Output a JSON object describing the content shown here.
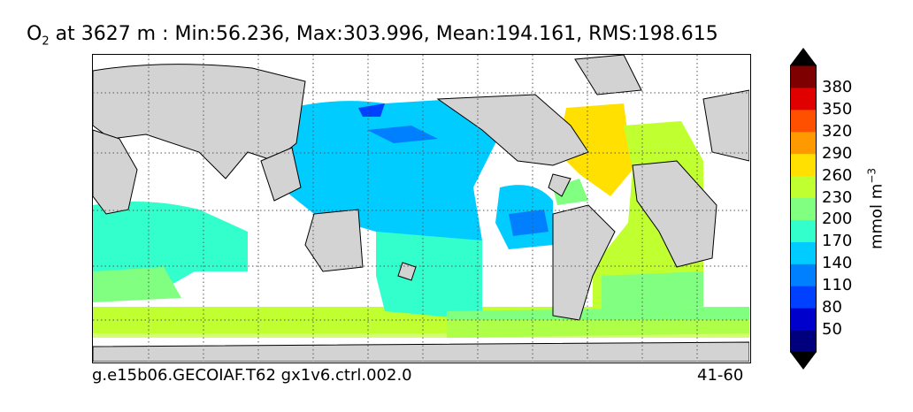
{
  "title": {
    "variable": "O",
    "subscript": "2",
    "rest": " at 3627 m : Min:56.236, Max:303.996, Mean:194.161, RMS:198.615"
  },
  "footer": {
    "case_name": "g.e15b06.GECOIAF.T62 gx1v6.ctrl.002.0",
    "years": "41-60"
  },
  "colorbar": {
    "units": "mmol m",
    "units_exponent": "−3",
    "tick_labels": [
      "50",
      "80",
      "110",
      "140",
      "170",
      "200",
      "230",
      "260",
      "290",
      "320",
      "350",
      "380"
    ],
    "colors": [
      "#00007f",
      "#0000cd",
      "#0040ff",
      "#0080ff",
      "#00ccff",
      "#33ffcc",
      "#80ff80",
      "#c0ff30",
      "#ffe000",
      "#ff9900",
      "#ff5000",
      "#e00000",
      "#7f0000"
    ],
    "extend": "both"
  },
  "colors": {
    "land": "#d3d3d3",
    "missing": "#ffffff"
  }
}
